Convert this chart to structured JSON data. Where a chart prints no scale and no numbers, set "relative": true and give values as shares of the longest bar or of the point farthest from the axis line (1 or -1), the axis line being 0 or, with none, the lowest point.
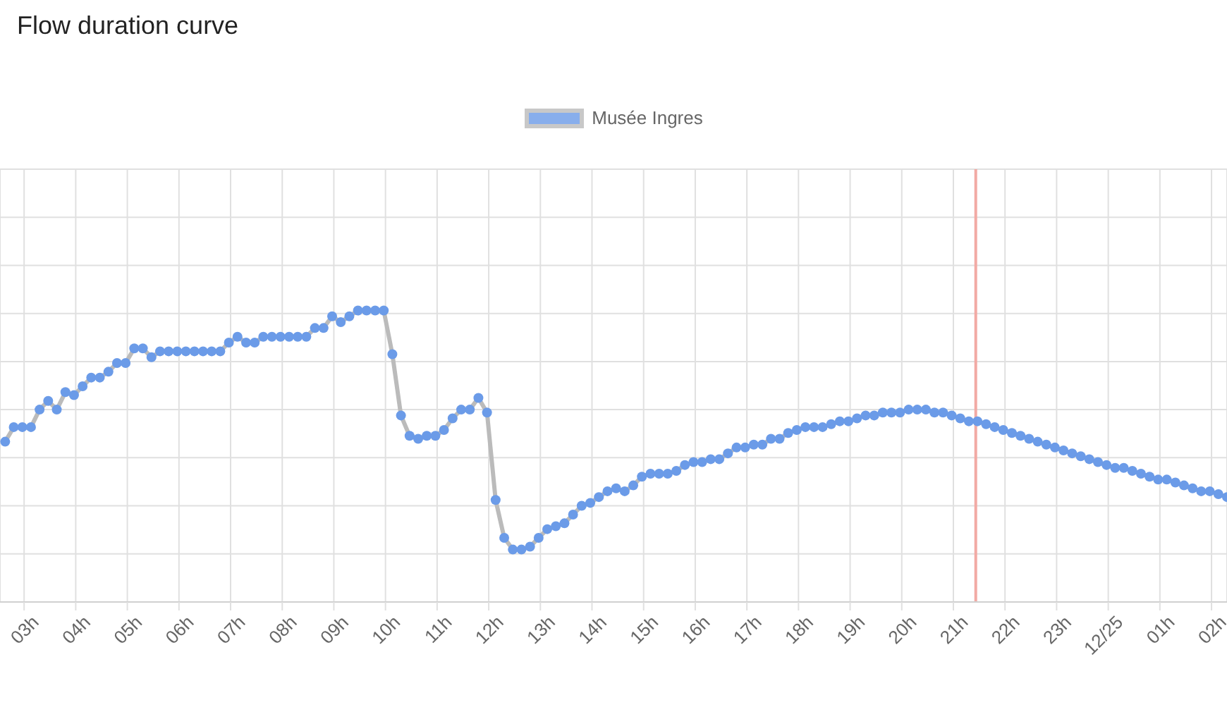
{
  "chart_data": {
    "type": "line",
    "title": "Flow duration curve",
    "relative": true,
    "legend": "top",
    "grid": true,
    "marker": "circle",
    "line_style": "solid",
    "xlim": [
      "--12-24T02:32",
      "--12-25T02:18"
    ],
    "xticks": [
      {
        "value": "--12-24T03:00",
        "label": "03h"
      },
      {
        "value": "--12-24T04:00",
        "label": "04h"
      },
      {
        "value": "--12-24T05:00",
        "label": "05h"
      },
      {
        "value": "--12-24T06:00",
        "label": "06h"
      },
      {
        "value": "--12-24T07:00",
        "label": "07h"
      },
      {
        "value": "--12-24T08:00",
        "label": "08h"
      },
      {
        "value": "--12-24T09:00",
        "label": "09h"
      },
      {
        "value": "--12-24T10:00",
        "label": "10h"
      },
      {
        "value": "--12-24T11:00",
        "label": "11h"
      },
      {
        "value": "--12-24T12:00",
        "label": "12h"
      },
      {
        "value": "--12-24T13:00",
        "label": "13h"
      },
      {
        "value": "--12-24T14:00",
        "label": "14h"
      },
      {
        "value": "--12-24T15:00",
        "label": "15h"
      },
      {
        "value": "--12-24T16:00",
        "label": "16h"
      },
      {
        "value": "--12-24T17:00",
        "label": "17h"
      },
      {
        "value": "--12-24T18:00",
        "label": "18h"
      },
      {
        "value": "--12-24T19:00",
        "label": "19h"
      },
      {
        "value": "--12-24T20:00",
        "label": "20h"
      },
      {
        "value": "--12-24T21:00",
        "label": "21h"
      },
      {
        "value": "--12-24T22:00",
        "label": "22h"
      },
      {
        "value": "--12-24T23:00",
        "label": "23h"
      },
      {
        "value": "--12-25T00:00",
        "label": "12/25"
      },
      {
        "value": "--12-25T01:00",
        "label": "01h"
      },
      {
        "value": "--12-25T02:00",
        "label": "02h"
      }
    ],
    "ref_lines": [
      {
        "axis": "x",
        "value": "--12-24T21:26",
        "color": "#f2aaa4"
      }
    ],
    "x": [
      "--12-24T02:38",
      "--12-24T02:48",
      "--12-24T02:58",
      "--12-24T03:08",
      "--12-24T03:18",
      "--12-24T03:28",
      "--12-24T03:38",
      "--12-24T03:48",
      "--12-24T03:58",
      "--12-24T04:08",
      "--12-24T04:18",
      "--12-24T04:28",
      "--12-24T04:38",
      "--12-24T04:48",
      "--12-24T04:58",
      "--12-24T05:08",
      "--12-24T05:18",
      "--12-24T05:28",
      "--12-24T05:38",
      "--12-24T05:48",
      "--12-24T05:58",
      "--12-24T06:08",
      "--12-24T06:18",
      "--12-24T06:28",
      "--12-24T06:38",
      "--12-24T06:48",
      "--12-24T06:58",
      "--12-24T07:08",
      "--12-24T07:18",
      "--12-24T07:28",
      "--12-24T07:38",
      "--12-24T07:48",
      "--12-24T07:58",
      "--12-24T08:08",
      "--12-24T08:18",
      "--12-24T08:28",
      "--12-24T08:38",
      "--12-24T08:48",
      "--12-24T08:58",
      "--12-24T09:08",
      "--12-24T09:18",
      "--12-24T09:28",
      "--12-24T09:38",
      "--12-24T09:48",
      "--12-24T09:58",
      "--12-24T10:08",
      "--12-24T10:18",
      "--12-24T10:28",
      "--12-24T10:38",
      "--12-24T10:48",
      "--12-24T10:58",
      "--12-24T11:08",
      "--12-24T11:18",
      "--12-24T11:28",
      "--12-24T11:38",
      "--12-24T11:48",
      "--12-24T11:58",
      "--12-24T12:08",
      "--12-24T12:18",
      "--12-24T12:28",
      "--12-24T12:38",
      "--12-24T12:48",
      "--12-24T12:58",
      "--12-24T13:08",
      "--12-24T13:18",
      "--12-24T13:28",
      "--12-24T13:38",
      "--12-24T13:48",
      "--12-24T13:58",
      "--12-24T14:08",
      "--12-24T14:18",
      "--12-24T14:28",
      "--12-24T14:38",
      "--12-24T14:48",
      "--12-24T14:58",
      "--12-24T15:08",
      "--12-24T15:18",
      "--12-24T15:28",
      "--12-24T15:38",
      "--12-24T15:48",
      "--12-24T15:58",
      "--12-24T16:08",
      "--12-24T16:18",
      "--12-24T16:28",
      "--12-24T16:38",
      "--12-24T16:48",
      "--12-24T16:58",
      "--12-24T17:08",
      "--12-24T17:18",
      "--12-24T17:28",
      "--12-24T17:38",
      "--12-24T17:48",
      "--12-24T17:58",
      "--12-24T18:08",
      "--12-24T18:18",
      "--12-24T18:28",
      "--12-24T18:38",
      "--12-24T18:48",
      "--12-24T18:58",
      "--12-24T19:08",
      "--12-24T19:18",
      "--12-24T19:28",
      "--12-24T19:38",
      "--12-24T19:48",
      "--12-24T19:58",
      "--12-24T20:08",
      "--12-24T20:18",
      "--12-24T20:28",
      "--12-24T20:38",
      "--12-24T20:48",
      "--12-24T20:58",
      "--12-24T21:08",
      "--12-24T21:18",
      "--12-24T21:28",
      "--12-24T21:38",
      "--12-24T21:48",
      "--12-24T21:58",
      "--12-24T22:08",
      "--12-24T22:18",
      "--12-24T22:28",
      "--12-24T22:38",
      "--12-24T22:48",
      "--12-24T22:58",
      "--12-24T23:08",
      "--12-24T23:18",
      "--12-24T23:28",
      "--12-24T23:38",
      "--12-24T23:48",
      "--12-24T23:58",
      "--12-25T00:08",
      "--12-25T00:18",
      "--12-25T00:28",
      "--12-25T00:38",
      "--12-25T00:48",
      "--12-25T00:58",
      "--12-25T01:08",
      "--12-25T01:18",
      "--12-25T01:28",
      "--12-25T01:38",
      "--12-25T01:48",
      "--12-25T01:58",
      "--12-25T02:08",
      "--12-25T02:18"
    ],
    "series": [
      {
        "name": "Musée Ingres",
        "color": "#6b9be8",
        "values": [
          0.55,
          0.6,
          0.6,
          0.6,
          0.66,
          0.69,
          0.66,
          0.72,
          0.71,
          0.74,
          0.77,
          0.77,
          0.79,
          0.82,
          0.82,
          0.87,
          0.87,
          0.84,
          0.86,
          0.86,
          0.86,
          0.86,
          0.86,
          0.86,
          0.86,
          0.86,
          0.89,
          0.91,
          0.89,
          0.89,
          0.91,
          0.91,
          0.91,
          0.91,
          0.91,
          0.91,
          0.94,
          0.94,
          0.98,
          0.96,
          0.98,
          1,
          1,
          1,
          1,
          0.85,
          0.64,
          0.57,
          0.56,
          0.57,
          0.57,
          0.59,
          0.63,
          0.66,
          0.66,
          0.7,
          0.65,
          0.35,
          0.22,
          0.18,
          0.18,
          0.19,
          0.22,
          0.25,
          0.26,
          0.27,
          0.3,
          0.33,
          0.34,
          0.36,
          0.38,
          0.39,
          0.38,
          0.4,
          0.43,
          0.44,
          0.44,
          0.44,
          0.45,
          0.47,
          0.48,
          0.48,
          0.49,
          0.49,
          0.51,
          0.53,
          0.53,
          0.54,
          0.54,
          0.56,
          0.56,
          0.58,
          0.59,
          0.6,
          0.6,
          0.6,
          0.61,
          0.62,
          0.62,
          0.63,
          0.64,
          0.64,
          0.65,
          0.65,
          0.65,
          0.66,
          0.66,
          0.66,
          0.65,
          0.65,
          0.64,
          0.63,
          0.62,
          0.62,
          0.61,
          0.6,
          0.59,
          0.58,
          0.57,
          0.56,
          0.55,
          0.54,
          0.53,
          0.52,
          0.51,
          0.5,
          0.49,
          0.48,
          0.47,
          0.46,
          0.46,
          0.45,
          0.44,
          0.43,
          0.42,
          0.42,
          0.41,
          0.4,
          0.39,
          0.38,
          0.38,
          0.37,
          0.36
        ]
      }
    ]
  }
}
